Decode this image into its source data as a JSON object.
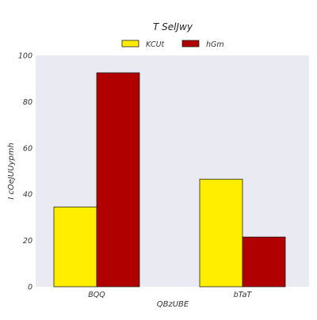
{
  "chart_data": {
    "type": "bar",
    "title": "T SelJwy",
    "xlabel": "QBzUBE",
    "ylabel": "I cOeJUUypmh",
    "categories": [
      "BQQ",
      "bTaT"
    ],
    "series": [
      {
        "name": "KCUt",
        "values": [
          34.5,
          46.5
        ],
        "color": "#ffee00"
      },
      {
        "name": "hGm",
        "values": [
          92.5,
          21.5
        ],
        "color": "#b00000"
      }
    ],
    "ylim": [
      0,
      100
    ],
    "yticks": [
      0,
      20,
      40,
      60,
      80,
      100
    ],
    "grid": false,
    "legend_position": "top-center",
    "plot_background": "#eaeaf2"
  }
}
